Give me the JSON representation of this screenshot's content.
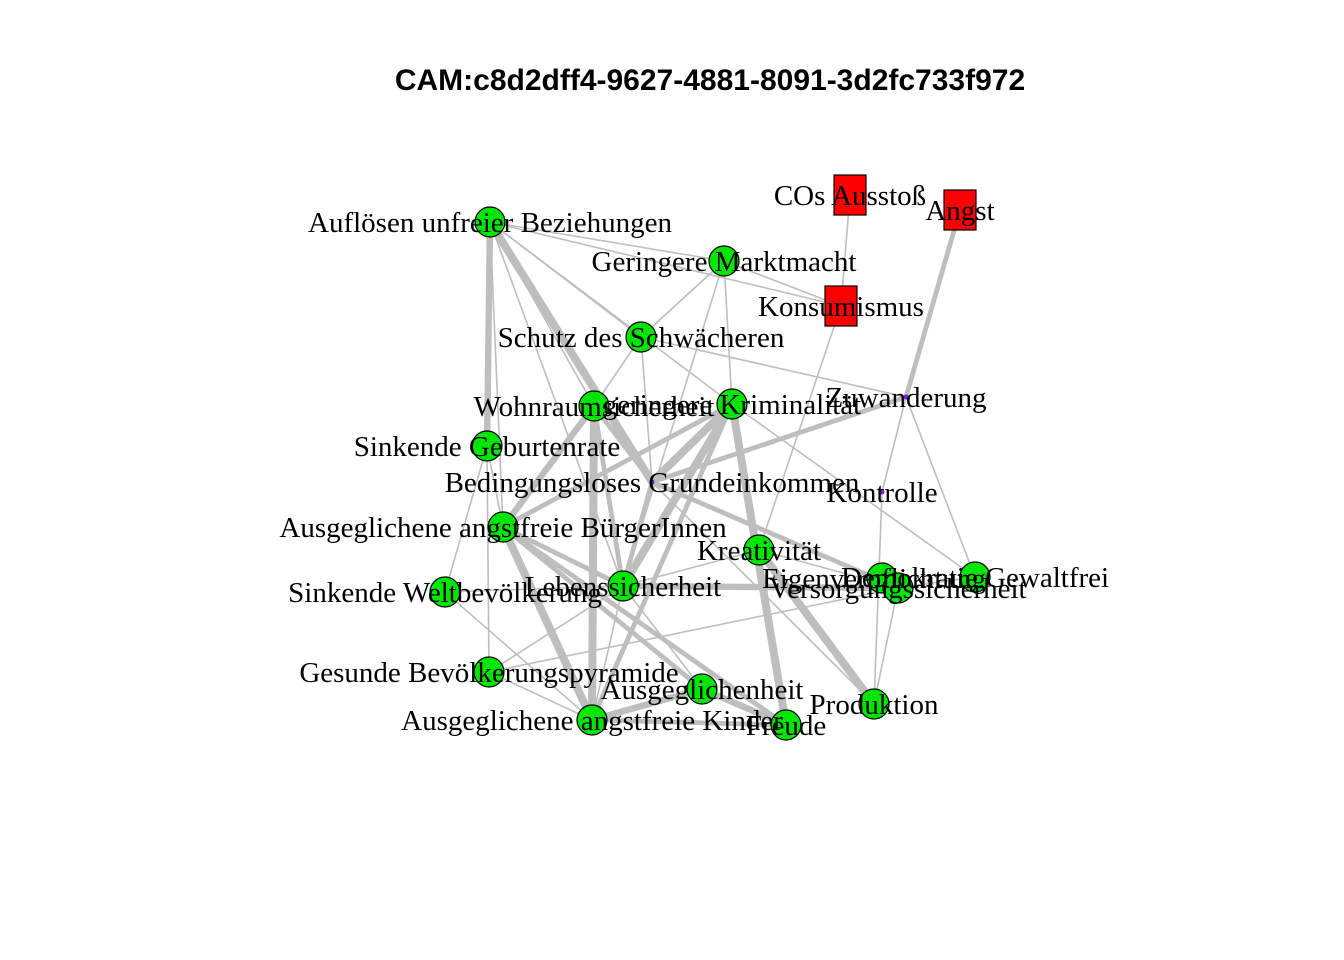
{
  "title": "CAM:c8d2dff4-9627-4881-8091-3d2fc733f972",
  "colors": {
    "positive": "#00e600",
    "negative": "#ff0000",
    "neutral": "#7b1fd6",
    "edge": "#bebebe",
    "border": "#000000"
  },
  "nodes": [
    {
      "id": "aufloesen",
      "label": "Auflösen unfreier Beziehungen",
      "valence": "positive",
      "shape": "circle"
    },
    {
      "id": "co2",
      "label": "COs Ausstoß",
      "valence": "negative",
      "shape": "square"
    },
    {
      "id": "angst",
      "label": "Angst",
      "valence": "negative",
      "shape": "square"
    },
    {
      "id": "marktmacht",
      "label": "Geringere Marktmacht",
      "valence": "positive",
      "shape": "circle"
    },
    {
      "id": "konsumismus",
      "label": "Konsumismus",
      "valence": "negative",
      "shape": "square"
    },
    {
      "id": "schutz",
      "label": "Schutz des Schwächeren",
      "valence": "positive",
      "shape": "circle"
    },
    {
      "id": "zuwanderung",
      "label": "Zuwanderung",
      "valence": "neutral",
      "shape": "dot"
    },
    {
      "id": "wohnraum",
      "label": "Wohnraumsicherheit",
      "valence": "positive",
      "shape": "circle"
    },
    {
      "id": "kriminalitaet",
      "label": "geringere Kriminalität",
      "valence": "positive",
      "shape": "circle"
    },
    {
      "id": "geburtenrate",
      "label": "Sinkende Geburtenrate",
      "valence": "positive",
      "shape": "circle"
    },
    {
      "id": "grundeinkommen",
      "label": "Bedingungsloses Grundeinkommen",
      "valence": "neutral",
      "shape": "dot"
    },
    {
      "id": "kontrolle",
      "label": "Kontrolle",
      "valence": "neutral",
      "shape": "dot"
    },
    {
      "id": "buergerinnen",
      "label": "Ausgeglichene angstfreie BürgerInnen",
      "valence": "positive",
      "shape": "circle"
    },
    {
      "id": "kreativitaet",
      "label": "Kreativität",
      "valence": "positive",
      "shape": "circle"
    },
    {
      "id": "weltbev",
      "label": "Sinkende Weltbevölkerung",
      "valence": "positive",
      "shape": "circle"
    },
    {
      "id": "lebenssicherheit",
      "label": "Lebenssicherheit",
      "valence": "positive",
      "shape": "circle"
    },
    {
      "id": "eigenverpflichtung",
      "label": "Eigenverpflichtung",
      "valence": "positive",
      "shape": "circle"
    },
    {
      "id": "versorgung",
      "label": "Versorgungssicherheit",
      "valence": "positive",
      "shape": "circle"
    },
    {
      "id": "demokratie",
      "label": "Demokratie Gewaltfrei",
      "valence": "positive",
      "shape": "circle"
    },
    {
      "id": "pyramide",
      "label": "Gesunde Bevölkerungspyramide",
      "valence": "positive",
      "shape": "circle"
    },
    {
      "id": "ausgeglichenheit",
      "label": "Ausgeglichenheit",
      "valence": "positive",
      "shape": "circle"
    },
    {
      "id": "kinder",
      "label": "Ausgeglichene angstfreie Kinder",
      "valence": "positive",
      "shape": "circle"
    },
    {
      "id": "produktion",
      "label": "Produktion",
      "valence": "positive",
      "shape": "circle"
    },
    {
      "id": "freude",
      "label": "Freude",
      "valence": "positive",
      "shape": "circle"
    }
  ],
  "edges": [
    {
      "source": "co2",
      "target": "konsumismus",
      "weight": 1
    },
    {
      "source": "angst",
      "target": "zuwanderung",
      "weight": 3
    },
    {
      "source": "zuwanderung",
      "target": "grundeinkommen",
      "weight": 3
    },
    {
      "source": "zuwanderung",
      "target": "kontrolle",
      "weight": 1
    },
    {
      "source": "zuwanderung",
      "target": "demokratie",
      "weight": 1
    },
    {
      "source": "kontrolle",
      "target": "produktion",
      "weight": 1
    },
    {
      "source": "konsumismus",
      "target": "marktmacht",
      "weight": 1
    },
    {
      "source": "konsumismus",
      "target": "kreativitaet",
      "weight": 1
    },
    {
      "source": "aufloesen",
      "target": "marktmacht",
      "weight": 1
    },
    {
      "source": "aufloesen",
      "target": "konsumismus",
      "weight": 1
    },
    {
      "source": "aufloesen",
      "target": "schutz",
      "weight": 1
    },
    {
      "source": "aufloesen",
      "target": "wohnraum",
      "weight": 1
    },
    {
      "source": "aufloesen",
      "target": "geburtenrate",
      "weight": 4
    },
    {
      "source": "aufloesen",
      "target": "grundeinkommen",
      "weight": 5
    },
    {
      "source": "aufloesen",
      "target": "lebenssicherheit",
      "weight": 1
    },
    {
      "source": "aufloesen",
      "target": "kriminalitaet",
      "weight": 1
    },
    {
      "source": "aufloesen",
      "target": "buergerinnen",
      "weight": 1
    },
    {
      "source": "marktmacht",
      "target": "schutz",
      "weight": 1
    },
    {
      "source": "marktmacht",
      "target": "kriminalitaet",
      "weight": 1
    },
    {
      "source": "marktmacht",
      "target": "lebenssicherheit",
      "weight": 1
    },
    {
      "source": "schutz",
      "target": "zuwanderung",
      "weight": 1
    },
    {
      "source": "schutz",
      "target": "wohnraum",
      "weight": 1
    },
    {
      "source": "schutz",
      "target": "grundeinkommen",
      "weight": 1
    },
    {
      "source": "wohnraum",
      "target": "grundeinkommen",
      "weight": 3
    },
    {
      "source": "wohnraum",
      "target": "lebenssicherheit",
      "weight": 3
    },
    {
      "source": "wohnraum",
      "target": "buergerinnen",
      "weight": 4
    },
    {
      "source": "wohnraum",
      "target": "kinder",
      "weight": 5
    },
    {
      "source": "kriminalitaet",
      "target": "grundeinkommen",
      "weight": 5
    },
    {
      "source": "kriminalitaet",
      "target": "lebenssicherheit",
      "weight": 5
    },
    {
      "source": "kriminalitaet",
      "target": "freude",
      "weight": 5
    },
    {
      "source": "kriminalitaet",
      "target": "buergerinnen",
      "weight": 3
    },
    {
      "source": "kriminalitaet",
      "target": "kreativitaet",
      "weight": 1
    },
    {
      "source": "kriminalitaet",
      "target": "demokratie",
      "weight": 1
    },
    {
      "source": "kriminalitaet",
      "target": "kinder",
      "weight": 3
    },
    {
      "source": "geburtenrate",
      "target": "pyramide",
      "weight": 1
    },
    {
      "source": "geburtenrate",
      "target": "weltbev",
      "weight": 1
    },
    {
      "source": "geburtenrate",
      "target": "buergerinnen",
      "weight": 1
    },
    {
      "source": "grundeinkommen",
      "target": "lebenssicherheit",
      "weight": 3
    },
    {
      "source": "grundeinkommen",
      "target": "versorgung",
      "weight": 3
    },
    {
      "source": "grundeinkommen",
      "target": "produktion",
      "weight": 1
    },
    {
      "source": "buergerinnen",
      "target": "lebenssicherheit",
      "weight": 3
    },
    {
      "source": "buergerinnen",
      "target": "freude",
      "weight": 3
    },
    {
      "source": "buergerinnen",
      "target": "ausgeglichenheit",
      "weight": 3
    },
    {
      "source": "buergerinnen",
      "target": "kinder",
      "weight": 5
    },
    {
      "source": "kreativitaet",
      "target": "produktion",
      "weight": 5
    },
    {
      "source": "kreativitaet",
      "target": "lebenssicherheit",
      "weight": 1
    },
    {
      "source": "kreativitaet",
      "target": "versorgung",
      "weight": 1
    },
    {
      "source": "lebenssicherheit",
      "target": "versorgung",
      "weight": 4
    },
    {
      "source": "lebenssicherheit",
      "target": "pyramide",
      "weight": 1
    },
    {
      "source": "lebenssicherheit",
      "target": "ausgeglichenheit",
      "weight": 1
    },
    {
      "source": "lebenssicherheit",
      "target": "kinder",
      "weight": 1
    },
    {
      "source": "lebenssicherheit",
      "target": "weltbev",
      "weight": 1
    },
    {
      "source": "versorgung",
      "target": "produktion",
      "weight": 1
    },
    {
      "source": "versorgung",
      "target": "pyramide",
      "weight": 1
    },
    {
      "source": "versorgung",
      "target": "demokratie",
      "weight": 1
    },
    {
      "source": "pyramide",
      "target": "kinder",
      "weight": 1
    },
    {
      "source": "weltbev",
      "target": "kinder",
      "weight": 1
    },
    {
      "source": "ausgeglichenheit",
      "target": "kinder",
      "weight": 4
    },
    {
      "source": "ausgeglichenheit",
      "target": "freude",
      "weight": 4
    },
    {
      "source": "kinder",
      "target": "freude",
      "weight": 3
    }
  ]
}
